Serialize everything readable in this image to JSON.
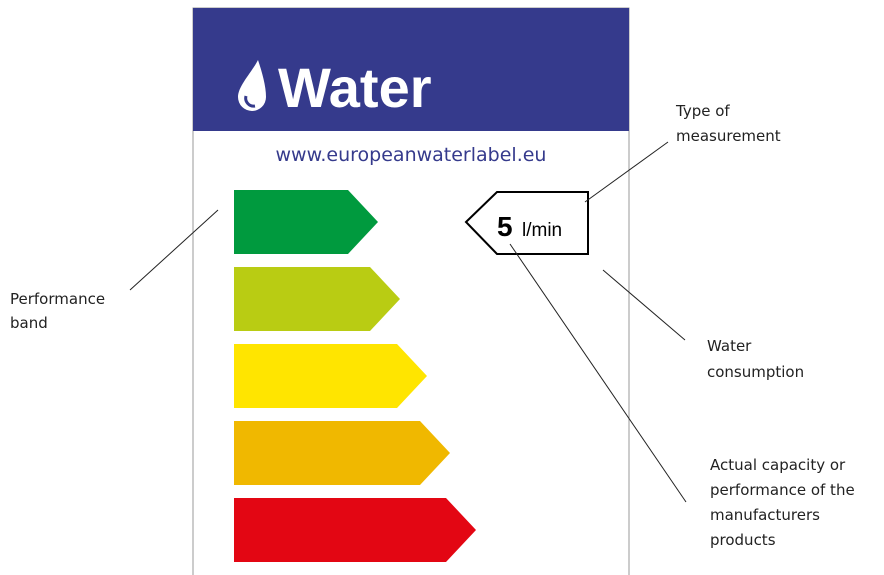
{
  "header": {
    "title": "Water",
    "url": "www.europeanwaterlabel.eu"
  },
  "indicator": {
    "value": "5",
    "unit": "l/min"
  },
  "annotations": [
    {
      "lines": [
        "Type of",
        "measurement"
      ]
    },
    {
      "lines": [
        "Water",
        "consumption"
      ]
    },
    {
      "lines": [
        "Actual capacity or",
        "performance of the",
        "manufacturers",
        "products"
      ]
    },
    {
      "lines": [
        "Performance",
        "band"
      ]
    }
  ]
}
